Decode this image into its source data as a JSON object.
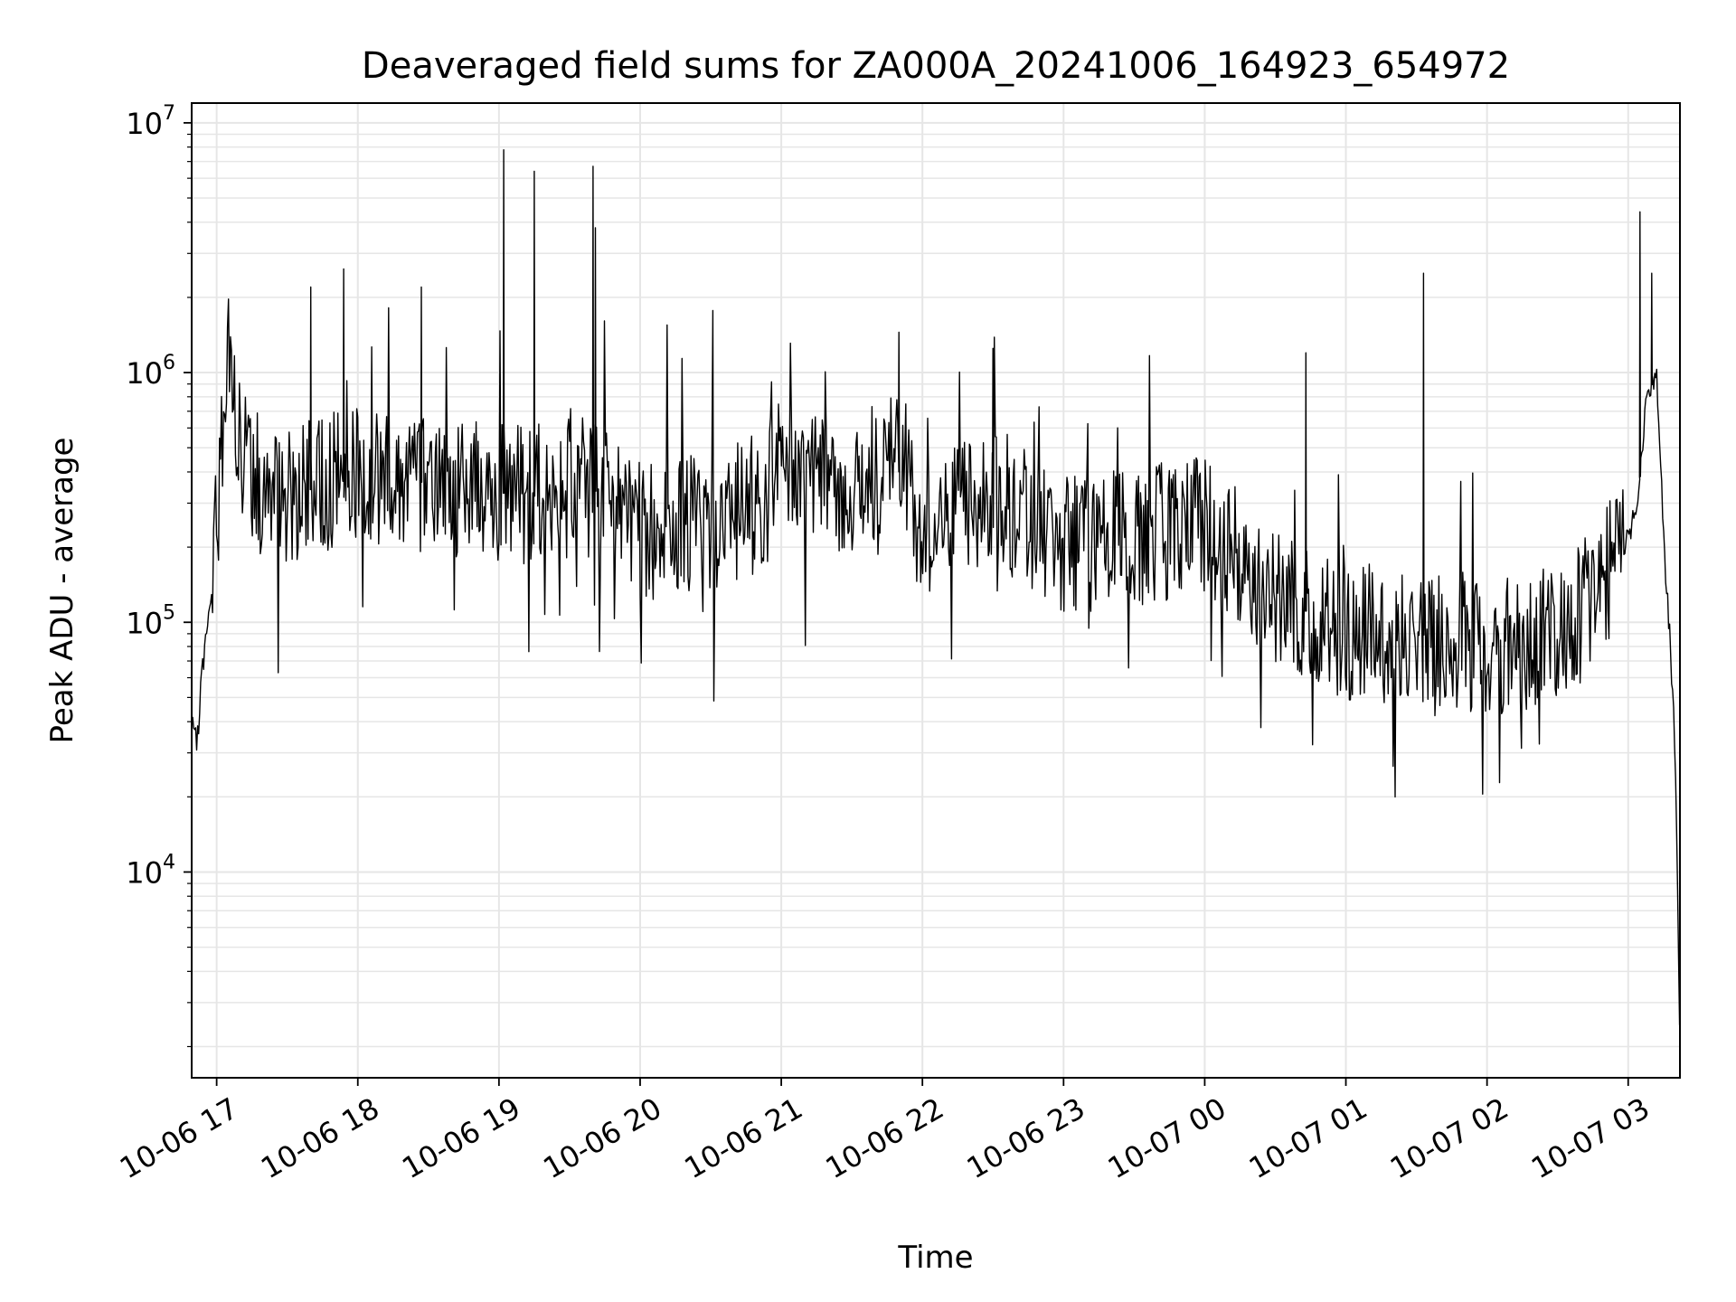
{
  "chart_data": {
    "type": "line",
    "title": "Deaveraged field sums for ZA000A_20241006_164923_654972",
    "xlabel": "Time",
    "ylabel": "Peak ADU - average",
    "yscale": "log",
    "ylim": [
      1500,
      12000000
    ],
    "xlim": [
      "2024-10-06T16:49:23",
      "2024-10-07T03:22:00"
    ],
    "grid": true,
    "line_color": "#000000",
    "grid_color": "#e6e6e6",
    "x_ticks": [
      {
        "label": "10-06 17",
        "t": "2024-10-06T17:00:00"
      },
      {
        "label": "10-06 18",
        "t": "2024-10-06T18:00:00"
      },
      {
        "label": "10-06 19",
        "t": "2024-10-06T19:00:00"
      },
      {
        "label": "10-06 20",
        "t": "2024-10-06T20:00:00"
      },
      {
        "label": "10-06 21",
        "t": "2024-10-06T21:00:00"
      },
      {
        "label": "10-06 22",
        "t": "2024-10-06T22:00:00"
      },
      {
        "label": "10-06 23",
        "t": "2024-10-06T23:00:00"
      },
      {
        "label": "10-07 00",
        "t": "2024-10-07T00:00:00"
      },
      {
        "label": "10-07 01",
        "t": "2024-10-07T01:00:00"
      },
      {
        "label": "10-07 02",
        "t": "2024-10-07T02:00:00"
      },
      {
        "label": "10-07 03",
        "t": "2024-10-07T03:00:00"
      }
    ],
    "y_ticks": [
      {
        "base": "10",
        "exp": "4",
        "value": 10000
      },
      {
        "base": "10",
        "exp": "5",
        "value": 100000
      },
      {
        "base": "10",
        "exp": "6",
        "value": 1000000
      },
      {
        "base": "10",
        "exp": "7",
        "value": 10000000
      }
    ],
    "series": [
      {
        "x": [
          "2024-10-06T16:49:23",
          "2024-10-06T16:50:30",
          "2024-10-06T16:52:00",
          "2024-10-06T16:53:30",
          "2024-10-06T16:55:00",
          "2024-10-06T16:56:30",
          "2024-10-06T16:58:00",
          "2024-10-06T17:00:00",
          "2024-10-06T17:02:00",
          "2024-10-06T17:04:00",
          "2024-10-06T17:05:00",
          "2024-10-06T17:06:00",
          "2024-10-06T17:08:00",
          "2024-10-06T17:11:00",
          "2024-10-06T17:15:00",
          "2024-10-06T17:20:00",
          "2024-10-06T17:30:00",
          "2024-10-06T17:40:00",
          "2024-10-06T17:50:00",
          "2024-10-06T17:54:00",
          "2024-10-06T18:00:00",
          "2024-10-06T18:15:00",
          "2024-10-06T18:30:00",
          "2024-10-06T18:45:00",
          "2024-10-06T19:00:00",
          "2024-10-06T19:15:00",
          "2024-10-06T19:30:00",
          "2024-10-06T19:45:00",
          "2024-10-06T20:00:00",
          "2024-10-06T20:30:00",
          "2024-10-06T20:50:00",
          "2024-10-06T21:00:00",
          "2024-10-06T21:30:00",
          "2024-10-06T21:50:00",
          "2024-10-06T22:00:00",
          "2024-10-06T22:30:00",
          "2024-10-06T23:00:00",
          "2024-10-06T23:30:00",
          "2024-10-07T00:00:00",
          "2024-10-07T00:30:00",
          "2024-10-07T01:00:00",
          "2024-10-07T01:30:00",
          "2024-10-07T02:00:00",
          "2024-10-07T02:30:00",
          "2024-10-07T02:50:00",
          "2024-10-07T03:00:00",
          "2024-10-07T03:04:00",
          "2024-10-07T03:08:00",
          "2024-10-07T03:12:00",
          "2024-10-07T03:14:00",
          "2024-10-07T03:16:00",
          "2024-10-07T03:18:00",
          "2024-10-07T03:20:00",
          "2024-10-07T03:22:00"
        ],
        "y": [
          40000,
          33000,
          35000,
          60000,
          80000,
          100000,
          130000,
          260000,
          500000,
          1200000,
          1500000,
          900000,
          650000,
          450000,
          380000,
          350000,
          330000,
          340000,
          380000,
          420000,
          400000,
          380000,
          360000,
          340000,
          330000,
          320000,
          380000,
          320000,
          230000,
          250000,
          300000,
          450000,
          320000,
          500000,
          220000,
          330000,
          200000,
          220000,
          250000,
          130000,
          90000,
          90000,
          80000,
          90000,
          150000,
          220000,
          300000,
          800000,
          1000000,
          400000,
          150000,
          78000,
          30000,
          2000
        ]
      }
    ],
    "spikes": [
      {
        "t": "2024-10-06T17:40:00",
        "value": 2200000
      },
      {
        "t": "2024-10-06T17:54:00",
        "value": 2600000
      },
      {
        "t": "2024-10-06T18:27:00",
        "value": 2200000
      },
      {
        "t": "2024-10-06T19:02:00",
        "value": 7800000
      },
      {
        "t": "2024-10-06T19:15:00",
        "value": 6400000
      },
      {
        "t": "2024-10-06T19:40:00",
        "value": 6700000
      },
      {
        "t": "2024-10-06T19:41:00",
        "value": 3800000
      },
      {
        "t": "2024-10-06T21:50:00",
        "value": 1450000
      },
      {
        "t": "2024-10-06T22:30:00",
        "value": 1250000
      },
      {
        "t": "2024-10-07T00:43:00",
        "value": 1200000
      },
      {
        "t": "2024-10-07T01:33:00",
        "value": 2500000
      },
      {
        "t": "2024-10-07T03:05:00",
        "value": 4400000
      },
      {
        "t": "2024-10-07T03:10:00",
        "value": 2500000
      }
    ]
  }
}
